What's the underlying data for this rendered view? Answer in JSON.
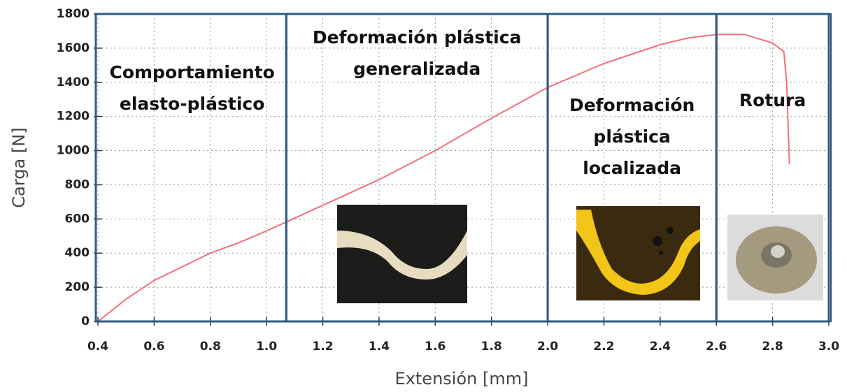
{
  "chart_data": {
    "type": "line",
    "x_label": "Extensión [mm]",
    "y_label": "Carga [N]",
    "xlim": [
      0.4,
      3.0
    ],
    "ylim": [
      0,
      1800
    ],
    "xticks": [
      0.4,
      0.6,
      0.8,
      {
        "value": 1,
        "label": "1.0"
      },
      1.2,
      1.4,
      1.6,
      1.8,
      {
        "value": 2,
        "label": "2.0"
      },
      2.2,
      2.4,
      2.6,
      2.8,
      {
        "value": 3,
        "label": "3.0"
      }
    ],
    "yticks": [
      0,
      200,
      400,
      600,
      800,
      1000,
      1200,
      1400,
      1600,
      1800
    ],
    "grid": true,
    "series": [
      {
        "color": "#f0707a",
        "x": [
          0.4,
          0.5,
          0.6,
          0.7,
          0.8,
          0.9,
          1.0,
          1.08,
          1.2,
          1.4,
          1.6,
          1.8,
          2.0,
          2.2,
          2.4,
          2.5,
          2.6,
          2.7,
          2.8,
          2.84,
          2.85,
          2.86
        ],
        "values": [
          0,
          130,
          240,
          320,
          400,
          460,
          530,
          590,
          680,
          830,
          1000,
          1190,
          1370,
          1510,
          1620,
          1660,
          1680,
          1680,
          1630,
          1580,
          1400,
          920
        ]
      }
    ],
    "regions": [
      {
        "label": [
          "Comportamiento",
          "elasto-plástico"
        ],
        "x": [
          0.4,
          1.07
        ]
      },
      {
        "label": [
          "Deformación plástica",
          "generalizada"
        ],
        "x": [
          1.07,
          2.0
        ]
      },
      {
        "label": [
          "Deformación",
          "plástica",
          "localizada"
        ],
        "x": [
          2.0,
          2.6
        ]
      },
      {
        "label": [
          "Rotura"
        ],
        "x": [
          2.6,
          3.0
        ]
      }
    ]
  }
}
